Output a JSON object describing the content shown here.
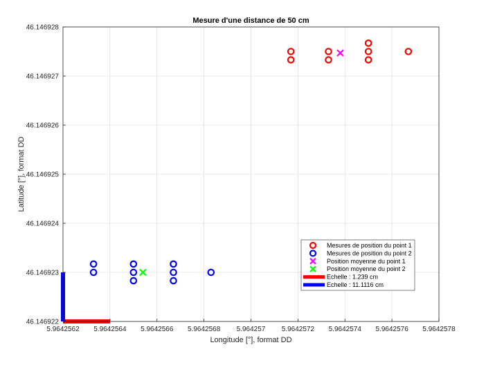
{
  "chart_data": {
    "type": "scatter",
    "title": "Mesure d'une distance de 50 cm",
    "xlabel": "Longitude [°], format DD",
    "ylabel": "Latitude [°], format DD",
    "xlim": [
      5.9642562,
      5.9642578
    ],
    "ylim": [
      46.146922,
      46.146928
    ],
    "xticks": [
      "5.9642562",
      "5.9642564",
      "5.9642566",
      "5.9642568",
      "5.964257",
      "5.9642572",
      "5.9642574",
      "5.9642576",
      "5.9642578"
    ],
    "yticks": [
      "46.146922",
      "46.146923",
      "46.146924",
      "46.146925",
      "46.146926",
      "46.146927",
      "46.146928"
    ],
    "grid": true,
    "legend_position": "bottom-right",
    "series": [
      {
        "name": "Mesures de position du point 1",
        "marker": "o",
        "color": "#ff0000",
        "points": [
          [
            5.96425717,
            46.1469275
          ],
          [
            5.96425717,
            46.14692733
          ],
          [
            5.96425733,
            46.1469275
          ],
          [
            5.96425733,
            46.14692733
          ],
          [
            5.9642575,
            46.14692767
          ],
          [
            5.9642575,
            46.1469275
          ],
          [
            5.9642575,
            46.14692733
          ],
          [
            5.96425767,
            46.1469275
          ]
        ]
      },
      {
        "name": "Mesures de position du point 2",
        "marker": "o",
        "color": "#0000ff",
        "points": [
          [
            5.96425633,
            46.14692317
          ],
          [
            5.96425633,
            46.146923
          ],
          [
            5.9642565,
            46.14692317
          ],
          [
            5.9642565,
            46.146923
          ],
          [
            5.9642565,
            46.14692283
          ],
          [
            5.96425667,
            46.14692317
          ],
          [
            5.96425667,
            46.146923
          ],
          [
            5.96425667,
            46.14692283
          ],
          [
            5.96425683,
            46.146923
          ]
        ]
      },
      {
        "name": "Position moyenne du point 1",
        "marker": "x",
        "color": "#ff00ff",
        "points": [
          [
            5.96425738,
            46.14692747
          ]
        ]
      },
      {
        "name": "Position moyenne du point 2",
        "marker": "x",
        "color": "#00ff00",
        "points": [
          [
            5.96425654,
            46.146923
          ]
        ]
      },
      {
        "name": "Echelle : 1.239 cm",
        "marker": "line",
        "color": "#ff0000",
        "points": [
          [
            5.9642562,
            46.146922
          ],
          [
            5.9642564,
            46.146922
          ]
        ]
      },
      {
        "name": "Echelle : 11.1116 cm",
        "marker": "line",
        "color": "#0000ff",
        "points": [
          [
            5.9642562,
            46.146922
          ],
          [
            5.9642562,
            46.146923
          ]
        ]
      }
    ]
  }
}
